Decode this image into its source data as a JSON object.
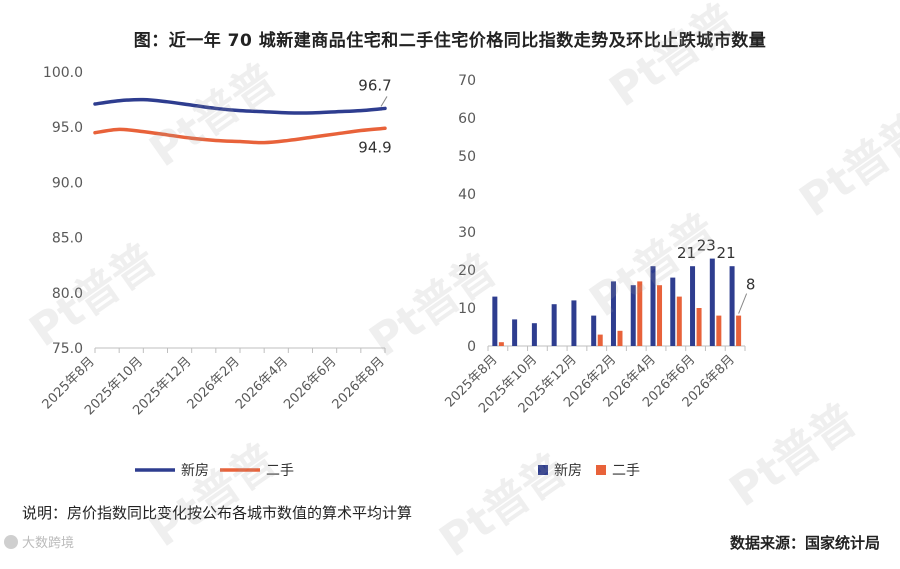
{
  "title": "图：近一年 70 城新建商品住宅和二手住宅价格同比指数走势及环比止跌城市数量",
  "note": "说明：房价指数同比变化按公布各城市数值的算术平均计算",
  "source": "数据来源：国家统计局",
  "watermark_text": "Pt普普",
  "logo_text": "大数跨境",
  "colors": {
    "new": "#2E3D8F",
    "second": "#E8623A",
    "axis": "#bfbfbf",
    "tick": "#595959"
  },
  "chart_data": [
    {
      "type": "line",
      "x": [
        "2025年8月",
        "2025年9月",
        "2025年10月",
        "2025年11月",
        "2025年12月",
        "2026年1月",
        "2026年2月",
        "2026年3月",
        "2026年4月",
        "2026年5月",
        "2026年6月",
        "2026年7月",
        "2026年8月"
      ],
      "tick_labels": [
        "2025年8月",
        "2025年10月",
        "2025年12月",
        "2026年2月",
        "2026年4月",
        "2026年6月",
        "2026年8月"
      ],
      "ylim": [
        75,
        100
      ],
      "yticks": [
        "100.0",
        "95.0",
        "90.0",
        "85.0",
        "80.0",
        "75.0"
      ],
      "grid": false,
      "legend": "bottom",
      "series": [
        {
          "name": "新房",
          "values": [
            97.1,
            97.4,
            97.5,
            97.3,
            97.0,
            96.7,
            96.5,
            96.4,
            96.3,
            96.3,
            96.4,
            96.5,
            96.7
          ]
        },
        {
          "name": "二手",
          "values": [
            94.5,
            94.8,
            94.6,
            94.3,
            94.0,
            93.8,
            93.7,
            93.6,
            93.8,
            94.1,
            94.4,
            94.7,
            94.9
          ]
        }
      ],
      "end_labels": [
        "96.7",
        "94.9"
      ]
    },
    {
      "type": "bar",
      "categories": [
        "2025年8月",
        "2025年9月",
        "2025年10月",
        "2025年11月",
        "2025年12月",
        "2026年1月",
        "2026年2月",
        "2026年3月",
        "2026年4月",
        "2026年5月",
        "2026年6月",
        "2026年7月",
        "2026年8月"
      ],
      "tick_labels": [
        "2025年8月",
        "2025年10月",
        "2025年12月",
        "2026年2月",
        "2026年4月",
        "2026年6月",
        "2026年8月"
      ],
      "ylim": [
        0,
        70
      ],
      "yticks": [
        "70",
        "60",
        "50",
        "40",
        "30",
        "20",
        "10",
        "0"
      ],
      "grid": false,
      "legend": "bottom",
      "series": [
        {
          "name": "新房",
          "values": [
            13,
            7,
            6,
            11,
            12,
            8,
            17,
            16,
            21,
            18,
            21,
            23,
            21
          ]
        },
        {
          "name": "二手",
          "values": [
            1,
            0,
            0,
            0,
            0,
            3,
            4,
            17,
            16,
            13,
            10,
            8,
            8
          ]
        }
      ],
      "data_labels": [
        {
          "series": 0,
          "index": 10,
          "text": "21"
        },
        {
          "series": 0,
          "index": 11,
          "text": "23"
        },
        {
          "series": 0,
          "index": 12,
          "text": "21"
        },
        {
          "series": 1,
          "index": 12,
          "text": "8"
        }
      ]
    }
  ]
}
